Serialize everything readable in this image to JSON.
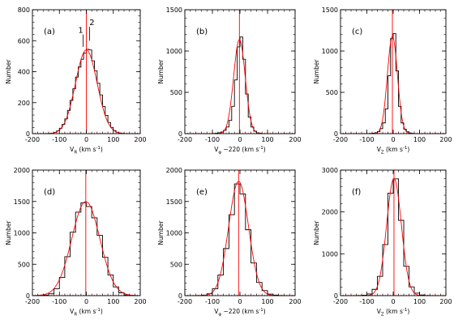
{
  "figure": {
    "panels": [
      {
        "tag": "(a)",
        "xlabel_main": "V",
        "xlabel_sub": "R",
        "xlabel_rest": "  (km s",
        "xlabel_sup": "-1",
        "xlabel_end": ")",
        "ylabel": "Number",
        "xlim": [
          -200,
          200
        ],
        "ylim": [
          0,
          800
        ],
        "xticks": [
          -200,
          -100,
          0,
          100,
          200
        ],
        "yticks": [
          0,
          200,
          400,
          600,
          800
        ],
        "hist_edges": [
          -200,
          -190,
          -180,
          -170,
          -160,
          -150,
          -140,
          -130,
          -120,
          -110,
          -100,
          -90,
          -80,
          -70,
          -60,
          -50,
          -40,
          -30,
          -20,
          -10,
          0,
          10,
          20,
          30,
          40,
          50,
          60,
          70,
          80,
          90,
          100,
          110,
          120,
          130,
          140,
          150,
          160,
          170,
          180,
          190,
          200
        ],
        "hist_counts": [
          0,
          0,
          0,
          0,
          0,
          0,
          1,
          3,
          8,
          18,
          35,
          60,
          95,
          150,
          215,
          290,
          365,
          430,
          480,
          520,
          545,
          540,
          470,
          405,
          325,
          250,
          175,
          118,
          72,
          40,
          20,
          9,
          4,
          1,
          0,
          0,
          0,
          0,
          0,
          0
        ],
        "gauss": [
          {
            "amp": 540,
            "mu": 0,
            "sigma": 40
          }
        ],
        "vline": 0,
        "annotations": [
          {
            "text": "1",
            "x": -12,
            "y_top": 640,
            "y_bot": 560
          },
          {
            "text": "2",
            "x": 12,
            "y_top": 690,
            "y_bot": 600
          }
        ]
      },
      {
        "tag": "(b)",
        "xlabel_main": "V",
        "xlabel_sub": "φ",
        "xlabel_rest": " −220  (km s",
        "xlabel_sup": "-1",
        "xlabel_end": ")",
        "ylabel": "Number",
        "xlim": [
          -200,
          200
        ],
        "ylim": [
          0,
          1500
        ],
        "xticks": [
          -200,
          -100,
          0,
          100,
          200
        ],
        "yticks": [
          0,
          500,
          1000,
          1500
        ],
        "hist_edges": [
          -200,
          -190,
          -180,
          -170,
          -160,
          -150,
          -140,
          -130,
          -120,
          -110,
          -100,
          -90,
          -80,
          -70,
          -60,
          -50,
          -40,
          -30,
          -20,
          -10,
          0,
          10,
          20,
          30,
          40,
          50,
          60,
          70,
          80,
          90,
          100,
          110,
          120,
          130,
          140,
          150,
          160,
          170,
          180,
          190,
          200
        ],
        "hist_counts": [
          0,
          0,
          0,
          0,
          0,
          0,
          0,
          0,
          0,
          0,
          2,
          5,
          10,
          20,
          40,
          80,
          160,
          330,
          650,
          1050,
          1170,
          900,
          480,
          200,
          80,
          30,
          10,
          4,
          1,
          0,
          0,
          0,
          0,
          0,
          0,
          0,
          0,
          0,
          0,
          0
        ],
        "gauss": [
          {
            "amp": 1140,
            "mu": -2,
            "sigma": 21
          }
        ],
        "vline": -2,
        "annotations": []
      },
      {
        "tag": "(c)",
        "xlabel_main": "V",
        "xlabel_sub": "Z",
        "xlabel_rest": "  (km s",
        "xlabel_sup": "-1",
        "xlabel_end": ")",
        "ylabel": "Number",
        "xlim": [
          -200,
          200
        ],
        "ylim": [
          0,
          1500
        ],
        "xticks": [
          -200,
          -100,
          0,
          100,
          200
        ],
        "yticks": [
          0,
          500,
          1000,
          1500
        ],
        "hist_edges": [
          -200,
          -190,
          -180,
          -170,
          -160,
          -150,
          -140,
          -130,
          -120,
          -110,
          -100,
          -90,
          -80,
          -70,
          -60,
          -50,
          -40,
          -30,
          -20,
          -10,
          0,
          10,
          20,
          30,
          40,
          50,
          60,
          70,
          80,
          90,
          100,
          110,
          120,
          130,
          140,
          150,
          160,
          170,
          180,
          190,
          200
        ],
        "hist_counts": [
          0,
          0,
          0,
          0,
          0,
          0,
          0,
          0,
          0,
          0,
          1,
          3,
          6,
          12,
          25,
          60,
          130,
          300,
          700,
          1150,
          1210,
          760,
          330,
          130,
          55,
          22,
          8,
          3,
          1,
          0,
          0,
          0,
          0,
          0,
          0,
          0,
          0,
          0,
          0,
          0
        ],
        "gauss": [
          {
            "amp": 1180,
            "mu": -3,
            "sigma": 19
          }
        ],
        "vline": -3,
        "annotations": []
      },
      {
        "tag": "(d)",
        "xlabel_main": "V",
        "xlabel_sub": "R",
        "xlabel_rest": "  (km s",
        "xlabel_sup": "-1",
        "xlabel_end": ")",
        "ylabel": "Number",
        "xlim": [
          -200,
          200
        ],
        "ylim": [
          0,
          2000
        ],
        "xticks": [
          -200,
          -100,
          0,
          100,
          200
        ],
        "yticks": [
          0,
          500,
          1000,
          1500,
          2000
        ],
        "hist_edges": [
          -200,
          -180,
          -160,
          -140,
          -120,
          -100,
          -80,
          -60,
          -40,
          -20,
          0,
          20,
          40,
          60,
          80,
          100,
          120,
          140,
          160,
          180,
          200
        ],
        "hist_counts": [
          0,
          2,
          8,
          30,
          110,
          290,
          620,
          1010,
          1330,
          1480,
          1420,
          1240,
          960,
          610,
          330,
          140,
          45,
          12,
          3,
          0
        ],
        "gauss": [
          {
            "amp": 1500,
            "mu": -2,
            "sigma": 52
          }
        ],
        "vline": -2,
        "annotations": []
      },
      {
        "tag": "(e)",
        "xlabel_main": "V",
        "xlabel_sub": "φ",
        "xlabel_rest": " −220  (km s",
        "xlabel_sup": "-1",
        "xlabel_end": ")",
        "ylabel": "Number",
        "xlim": [
          -200,
          200
        ],
        "ylim": [
          0,
          2000
        ],
        "xticks": [
          -200,
          -100,
          0,
          100,
          200
        ],
        "yticks": [
          0,
          500,
          1000,
          1500,
          2000
        ],
        "hist_edges": [
          -200,
          -180,
          -160,
          -140,
          -120,
          -100,
          -80,
          -60,
          -40,
          -20,
          0,
          20,
          40,
          60,
          80,
          100,
          120,
          140,
          160,
          180,
          200
        ],
        "hist_counts": [
          0,
          0,
          2,
          8,
          30,
          110,
          330,
          750,
          1290,
          1780,
          1620,
          1050,
          520,
          210,
          80,
          25,
          8,
          2,
          0,
          0
        ],
        "gauss": [
          {
            "amp": 1820,
            "mu": -5,
            "sigma": 36
          }
        ],
        "vline": -5,
        "annotations": []
      },
      {
        "tag": "(f)",
        "xlabel_main": "V",
        "xlabel_sub": "Z",
        "xlabel_rest": "  (km s",
        "xlabel_sup": "-1",
        "xlabel_end": ")",
        "ylabel": "Number",
        "xlim": [
          -200,
          200
        ],
        "ylim": [
          0,
          3000
        ],
        "xticks": [
          -200,
          -100,
          0,
          100,
          200
        ],
        "yticks": [
          0,
          1000,
          2000,
          3000
        ],
        "hist_edges": [
          -200,
          -180,
          -160,
          -140,
          -120,
          -100,
          -80,
          -60,
          -40,
          -20,
          0,
          20,
          40,
          60,
          80,
          100,
          120,
          140,
          160,
          180,
          200
        ],
        "hist_counts": [
          0,
          0,
          0,
          3,
          10,
          40,
          150,
          460,
          1220,
          2450,
          2790,
          1800,
          700,
          210,
          60,
          15,
          4,
          0,
          0,
          0
        ],
        "gauss": [
          {
            "amp": 2800,
            "mu": 3,
            "sigma": 28
          }
        ],
        "vline": 3,
        "annotations": []
      }
    ]
  },
  "chart_data": [
    {
      "type": "histogram",
      "panel": "(a)",
      "xlabel": "V_R (km s^-1)",
      "ylabel": "Number",
      "xlim": [
        -200,
        200
      ],
      "ylim": [
        0,
        800
      ],
      "grid": false,
      "bin_width": 10,
      "peak": 545,
      "fit": "gaussian",
      "fit_color": "#ff0000"
    },
    {
      "type": "histogram",
      "panel": "(b)",
      "xlabel": "V_φ −220 (km s^-1)",
      "ylabel": "Number",
      "xlim": [
        -200,
        200
      ],
      "ylim": [
        0,
        1500
      ],
      "grid": false,
      "bin_width": 10,
      "peak": 1170,
      "fit": "gaussian",
      "fit_color": "#ff0000"
    },
    {
      "type": "histogram",
      "panel": "(c)",
      "xlabel": "V_Z (km s^-1)",
      "ylabel": "Number",
      "xlim": [
        -200,
        200
      ],
      "ylim": [
        0,
        1500
      ],
      "grid": false,
      "bin_width": 10,
      "peak": 1210,
      "fit": "gaussian",
      "fit_color": "#ff0000"
    },
    {
      "type": "histogram",
      "panel": "(d)",
      "xlabel": "V_R (km s^-1)",
      "ylabel": "Number",
      "xlim": [
        -200,
        200
      ],
      "ylim": [
        0,
        2000
      ],
      "grid": false,
      "bin_width": 20,
      "peak": 1480,
      "fit": "gaussian",
      "fit_color": "#ff0000"
    },
    {
      "type": "histogram",
      "panel": "(e)",
      "xlabel": "V_φ −220 (km s^-1)",
      "ylabel": "Number",
      "xlim": [
        -200,
        200
      ],
      "ylim": [
        0,
        2000
      ],
      "grid": false,
      "bin_width": 20,
      "peak": 1780,
      "fit": "gaussian",
      "fit_color": "#ff0000"
    },
    {
      "type": "histogram",
      "panel": "(f)",
      "xlabel": "V_Z (km s^-1)",
      "ylabel": "Number",
      "xlim": [
        -200,
        200
      ],
      "ylim": [
        0,
        3000
      ],
      "grid": false,
      "bin_width": 20,
      "peak": 2790,
      "fit": "gaussian",
      "fit_color": "#ff0000"
    }
  ],
  "colors": {
    "histogram": "#000000",
    "fit": "#ff0000",
    "axes": "#000000"
  }
}
